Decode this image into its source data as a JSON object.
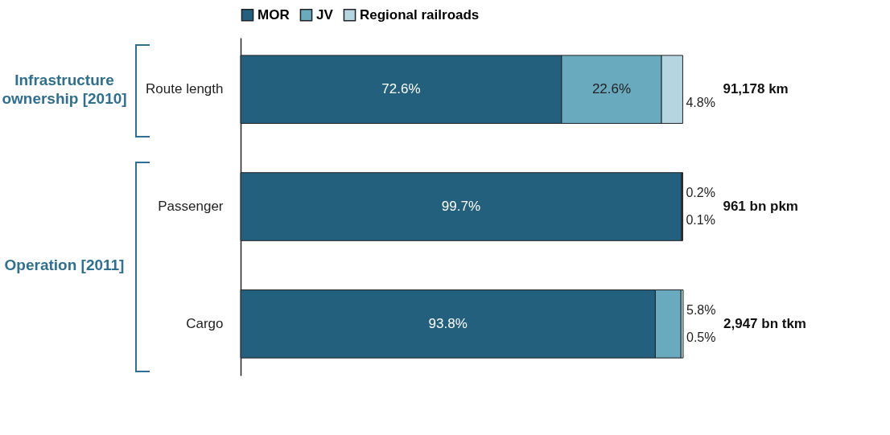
{
  "chart_data": {
    "type": "bar",
    "orientation": "horizontal",
    "stacked": true,
    "legend": "top",
    "categories": [
      "Route length",
      "Passenger",
      "Cargo"
    ],
    "series": [
      {
        "name": "MOR",
        "color": "#23607e",
        "values": [
          72.6,
          99.7,
          93.8
        ],
        "value_labels": [
          "72.6%",
          "99.7%",
          "93.8%"
        ]
      },
      {
        "name": "JV",
        "color": "#6aaabf",
        "values": [
          22.6,
          0.2,
          5.8
        ],
        "value_labels": [
          "22.6%",
          "0.2%",
          "5.8%"
        ]
      },
      {
        "name": "Regional railroads",
        "color": "#b5d5e0",
        "values": [
          4.8,
          0.1,
          0.5
        ],
        "value_labels": [
          "4.8%",
          "0.1%",
          "0.5%"
        ]
      }
    ],
    "annotations": [
      "Infrastructure ownership [2010]",
      "Operation [2011]",
      "91,178 km",
      "961 bn pkm",
      "2,947 bn tkm"
    ]
  }
}
